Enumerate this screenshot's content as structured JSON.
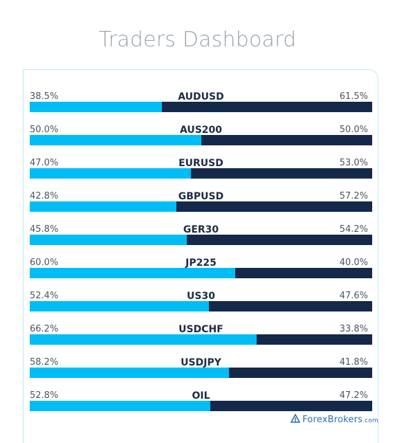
{
  "title": "Traders Dashboard",
  "colors": {
    "long": "#00bdf6",
    "short": "#14284a"
  },
  "rows": [
    {
      "symbol": "AUDUSD",
      "long_pct": "38.5%",
      "short_pct": "61.5%",
      "long_value": 38.5
    },
    {
      "symbol": "AUS200",
      "long_pct": "50.0%",
      "short_pct": "50.0%",
      "long_value": 50.0
    },
    {
      "symbol": "EURUSD",
      "long_pct": "47.0%",
      "short_pct": "53.0%",
      "long_value": 47.0
    },
    {
      "symbol": "GBPUSD",
      "long_pct": "42.8%",
      "short_pct": "57.2%",
      "long_value": 42.8
    },
    {
      "symbol": "GER30",
      "long_pct": "45.8%",
      "short_pct": "54.2%",
      "long_value": 45.8
    },
    {
      "symbol": "JP225",
      "long_pct": "60.0%",
      "short_pct": "40.0%",
      "long_value": 60.0
    },
    {
      "symbol": "US30",
      "long_pct": "52.4%",
      "short_pct": "47.6%",
      "long_value": 52.4
    },
    {
      "symbol": "USDCHF",
      "long_pct": "66.2%",
      "short_pct": "33.8%",
      "long_value": 66.2
    },
    {
      "symbol": "USDJPY",
      "long_pct": "58.2%",
      "short_pct": "41.8%",
      "long_value": 58.2
    },
    {
      "symbol": "OIL",
      "long_pct": "52.8%",
      "short_pct": "47.2%",
      "long_value": 52.8
    }
  ],
  "watermark": {
    "brand": "ForexBrokers",
    "suffix": ".com",
    "icon": "forexbrokers-logo-icon"
  }
}
